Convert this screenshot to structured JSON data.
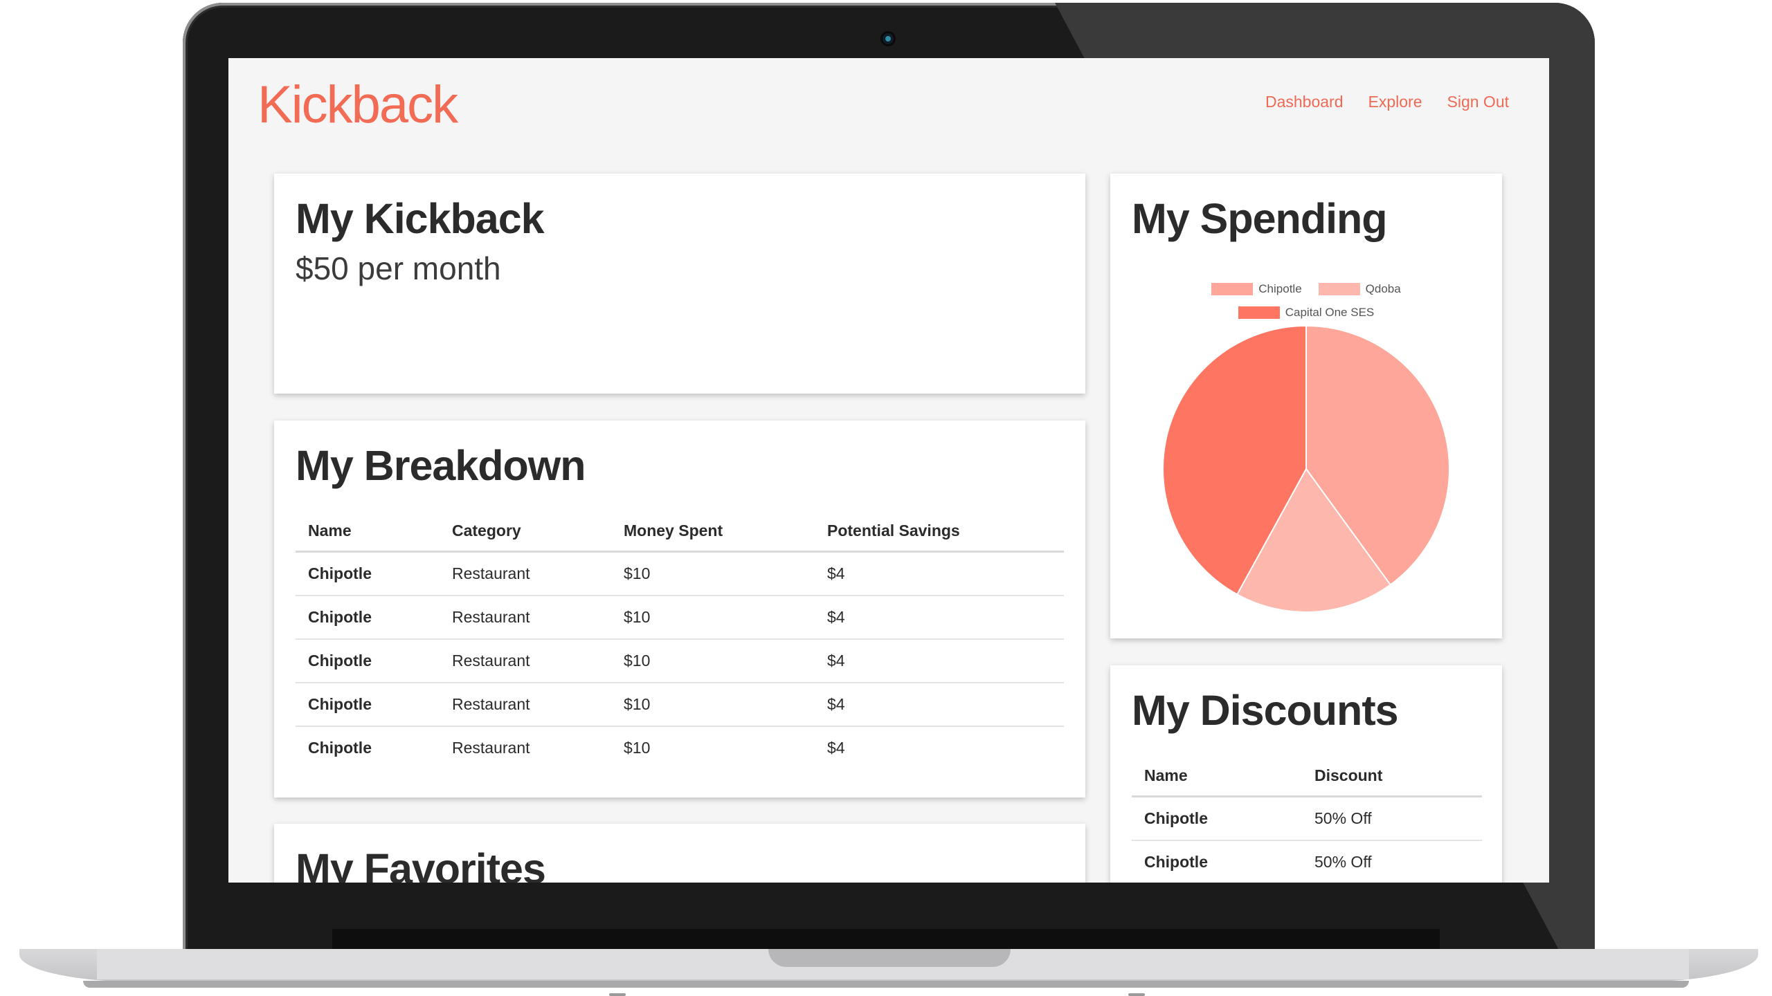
{
  "app": {
    "logo": "Kickback",
    "accent_color": "#f26b55"
  },
  "nav": [
    "Dashboard",
    "Explore",
    "Sign Out"
  ],
  "kickback": {
    "title": "My Kickback",
    "subtitle": "$50 per month"
  },
  "breakdown": {
    "title": "My Breakdown",
    "columns": [
      "Name",
      "Category",
      "Money Spent",
      "Potential Savings"
    ],
    "rows": [
      [
        "Chipotle",
        "Restaurant",
        "$10",
        "$4"
      ],
      [
        "Chipotle",
        "Restaurant",
        "$10",
        "$4"
      ],
      [
        "Chipotle",
        "Restaurant",
        "$10",
        "$4"
      ],
      [
        "Chipotle",
        "Restaurant",
        "$10",
        "$4"
      ],
      [
        "Chipotle",
        "Restaurant",
        "$10",
        "$4"
      ]
    ]
  },
  "favorites": {
    "title": "My Favorites"
  },
  "spending": {
    "title": "My Spending",
    "chart_data": {
      "type": "pie",
      "labels": [
        "Chipotle",
        "Qdoba",
        "Capital One SES"
      ],
      "values": [
        40,
        18,
        42
      ],
      "colors": [
        "#fda699",
        "#feb7ad",
        "#fe7561"
      ],
      "legend_position": "top"
    }
  },
  "discounts": {
    "title": "My Discounts",
    "columns": [
      "Name",
      "Discount"
    ],
    "rows": [
      [
        "Chipotle",
        "50% Off"
      ],
      [
        "Chipotle",
        "50% Off"
      ]
    ]
  }
}
